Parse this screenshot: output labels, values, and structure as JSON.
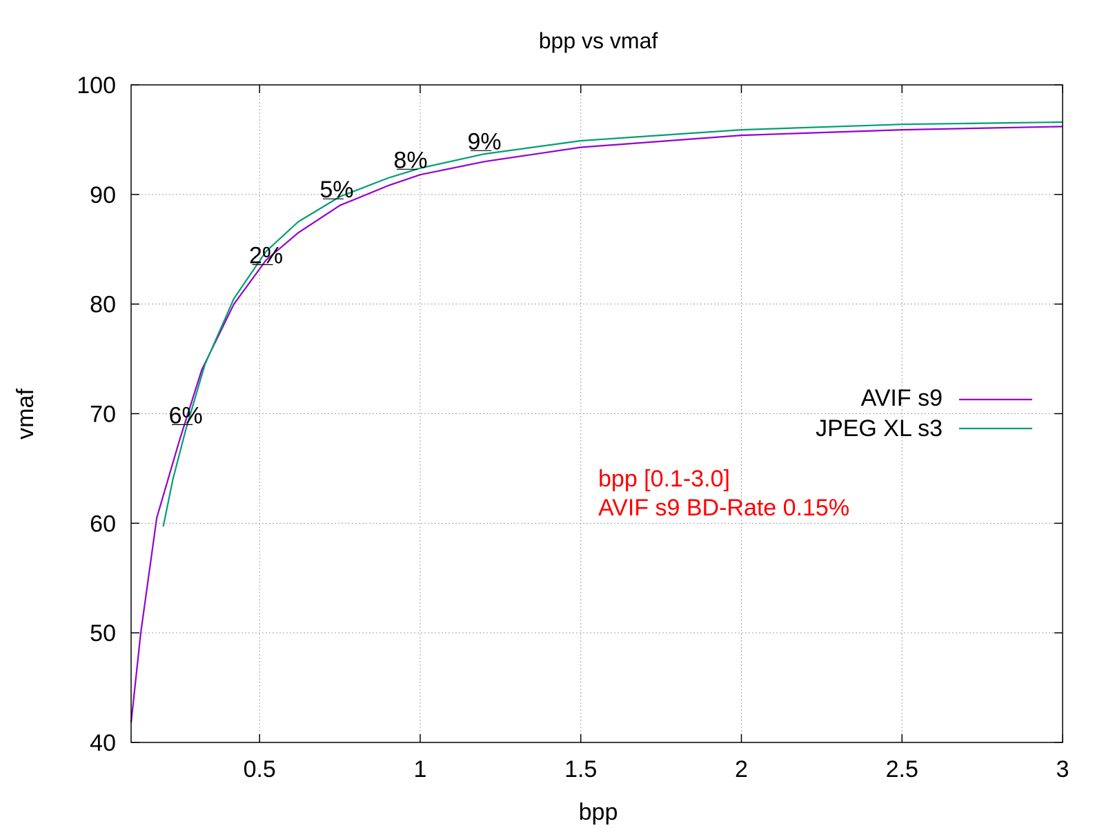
{
  "chart_data": {
    "type": "line",
    "title": "bpp vs vmaf",
    "xlabel": "bpp",
    "ylabel": "vmaf",
    "xlim": [
      0.1,
      3.0
    ],
    "ylim": [
      40,
      100
    ],
    "xticks": [
      0.5,
      1,
      1.5,
      2,
      2.5,
      3
    ],
    "xtick_labels": [
      "0.5",
      "1",
      "1.5",
      "2",
      "2.5",
      "3"
    ],
    "yticks": [
      40,
      50,
      60,
      70,
      80,
      90,
      100
    ],
    "ytick_labels": [
      "40",
      "50",
      "60",
      "70",
      "80",
      "90",
      "100"
    ],
    "grid": true,
    "legend_position": "right",
    "series": [
      {
        "name": "AVIF s9",
        "color": "#9400d3",
        "points": [
          [
            0.1,
            41.8
          ],
          [
            0.13,
            50.0
          ],
          [
            0.18,
            60.5
          ],
          [
            0.25,
            67.5
          ],
          [
            0.32,
            74.0
          ],
          [
            0.42,
            80.0
          ],
          [
            0.52,
            84.0
          ],
          [
            0.62,
            86.5
          ],
          [
            0.75,
            89.0
          ],
          [
            0.9,
            90.8
          ],
          [
            1.0,
            91.8
          ],
          [
            1.2,
            93.0
          ],
          [
            1.5,
            94.3
          ],
          [
            2.0,
            95.4
          ],
          [
            2.5,
            95.9
          ],
          [
            3.0,
            96.2
          ]
        ]
      },
      {
        "name": "JPEG XL s3",
        "color": "#009e73",
        "points": [
          [
            0.2,
            59.7
          ],
          [
            0.23,
            64.0
          ],
          [
            0.27,
            68.5
          ],
          [
            0.33,
            74.5
          ],
          [
            0.42,
            80.5
          ],
          [
            0.52,
            84.8
          ],
          [
            0.62,
            87.5
          ],
          [
            0.75,
            89.8
          ],
          [
            0.9,
            91.5
          ],
          [
            1.0,
            92.4
          ],
          [
            1.2,
            93.7
          ],
          [
            1.5,
            94.9
          ],
          [
            2.0,
            95.9
          ],
          [
            2.5,
            96.4
          ],
          [
            3.0,
            96.6
          ]
        ]
      }
    ],
    "annotations": [
      {
        "text": "6%",
        "x": 0.27,
        "y": 69.0
      },
      {
        "text": "2%",
        "x": 0.52,
        "y": 83.6
      },
      {
        "text": "5%",
        "x": 0.74,
        "y": 89.6
      },
      {
        "text": "8%",
        "x": 0.97,
        "y": 92.3
      },
      {
        "text": "9%",
        "x": 1.2,
        "y": 94.0
      }
    ],
    "bd_rate_text": [
      "bpp [0.1-3.0]",
      "AVIF s9 BD-Rate 0.15%"
    ],
    "bd_rate_color": "#ff0000"
  }
}
